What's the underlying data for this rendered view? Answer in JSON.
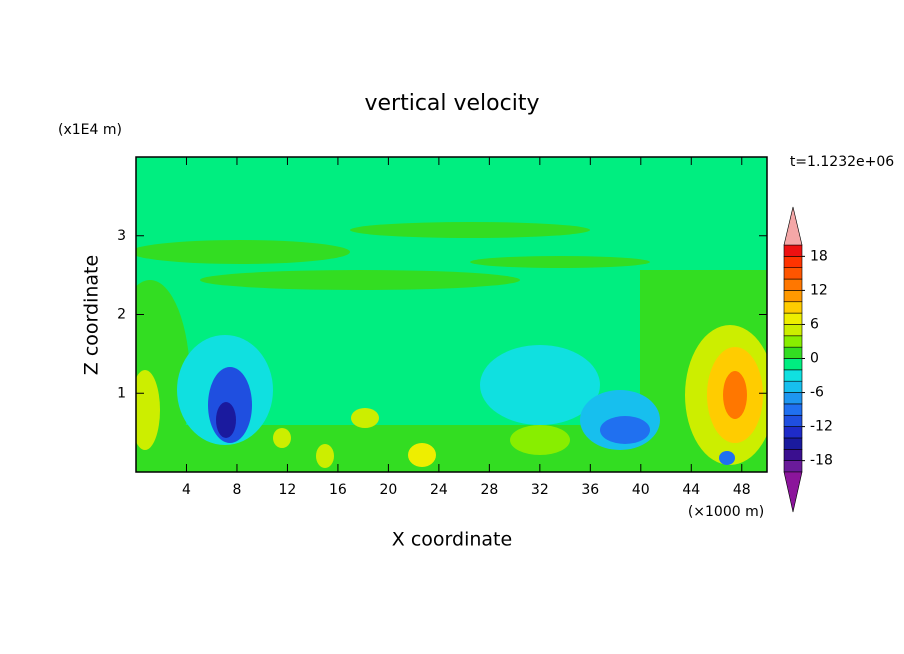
{
  "chart_data": {
    "type": "contour",
    "title": "vertical velocity",
    "x_label": "X coordinate",
    "y_label": "Z coordinate",
    "x_unit": "(×1000 m)",
    "y_unit": "(x1E4 m)",
    "time_label": "t=1.1232e+06",
    "xlim": [
      0,
      50
    ],
    "ylim": [
      0,
      4
    ],
    "xticks": [
      4,
      8,
      12,
      16,
      20,
      24,
      28,
      32,
      36,
      40,
      44,
      48
    ],
    "yticks": [
      1,
      2,
      3
    ],
    "colorbar": {
      "clim": [
        -20,
        20
      ],
      "ticks": [
        -18,
        -12,
        -6,
        0,
        6,
        12,
        18
      ],
      "colors": [
        "#6a1b9a",
        "#3a0f8f",
        "#1a1a9e",
        "#1e2bc8",
        "#1f4fe0",
        "#2070f0",
        "#1e96f0",
        "#17bfee",
        "#10e0e0",
        "#00ee80",
        "#33dd22",
        "#88ee00",
        "#ccee00",
        "#eeee00",
        "#ffcc00",
        "#ff9900",
        "#ff7700",
        "#ff5500",
        "#ff3300",
        "#ee1111"
      ],
      "under_color": "#8b159b",
      "over_color": "#f4a7a7"
    }
  }
}
